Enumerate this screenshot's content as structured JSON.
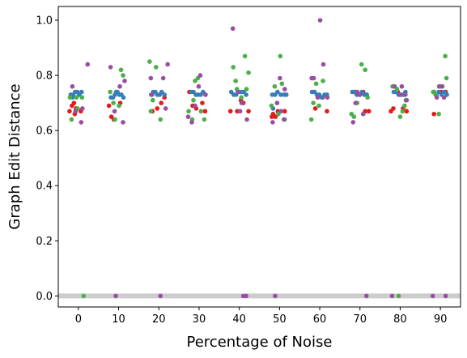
{
  "chart_data": {
    "type": "scatter",
    "title": "",
    "xlabel": "Percentage of Noise",
    "ylabel": "Graph Edit Distance",
    "xlim": [
      -5,
      95
    ],
    "ylim": [
      -0.04,
      1.05
    ],
    "x_ticks": [
      0,
      10,
      20,
      30,
      40,
      50,
      60,
      70,
      80,
      90
    ],
    "x_tick_labels": [
      "0",
      "10",
      "20",
      "30",
      "40",
      "50",
      "60",
      "70",
      "80",
      "90"
    ],
    "y_ticks": [
      0.0,
      0.2,
      0.4,
      0.6,
      0.8,
      1.0
    ],
    "y_tick_labels": [
      "0.0",
      "0.2",
      "0.4",
      "0.6",
      "0.8",
      "1.0"
    ],
    "baseline": {
      "y": 0.0,
      "color": "#cccccc"
    },
    "grid": false,
    "legend": "none",
    "series": [
      {
        "color": "#e41a1c",
        "points": [
          [
            -2.2,
            0.67
          ],
          [
            -1.6,
            0.69
          ],
          [
            -1.1,
            0.7
          ],
          [
            -0.6,
            0.68
          ],
          [
            0.6,
            0.67
          ],
          [
            -0.9,
            0.66
          ],
          [
            7.6,
            0.69
          ],
          [
            8.2,
            0.65
          ],
          [
            8.8,
            0.64
          ],
          [
            10.4,
            0.7
          ],
          [
            18.4,
            0.67
          ],
          [
            19.6,
            0.68
          ],
          [
            20.6,
            0.7
          ],
          [
            21.4,
            0.72
          ],
          [
            27.6,
            0.74
          ],
          [
            28.4,
            0.69
          ],
          [
            29.3,
            0.68
          ],
          [
            30.8,
            0.7
          ],
          [
            31.5,
            0.67
          ],
          [
            37.8,
            0.67
          ],
          [
            39.5,
            0.67
          ],
          [
            40.4,
            0.71
          ],
          [
            41.0,
            0.7
          ],
          [
            42.3,
            0.67
          ],
          [
            48.1,
            0.65
          ],
          [
            48.4,
            0.66
          ],
          [
            49.6,
            0.67
          ],
          [
            51.3,
            0.67
          ],
          [
            49.0,
            0.65
          ],
          [
            58.1,
            0.74
          ],
          [
            58.9,
            0.68
          ],
          [
            60.7,
            0.72
          ],
          [
            61.8,
            0.67
          ],
          [
            68.9,
            0.74
          ],
          [
            70.8,
            0.74
          ],
          [
            71.3,
            0.67
          ],
          [
            72.2,
            0.67
          ],
          [
            77.7,
            0.67
          ],
          [
            78.3,
            0.68
          ],
          [
            79.4,
            0.74
          ],
          [
            80.7,
            0.68
          ],
          [
            81.6,
            0.67
          ],
          [
            88.3,
            0.74
          ],
          [
            88.4,
            0.66
          ],
          [
            90.2,
            0.74
          ],
          [
            91.3,
            0.74
          ]
        ]
      },
      {
        "color": "#377eb8",
        "points": [
          [
            -1.9,
            0.73
          ],
          [
            -1.3,
            0.73
          ],
          [
            -0.8,
            0.74
          ],
          [
            -0.3,
            0.74
          ],
          [
            0.2,
            0.73
          ],
          [
            0.8,
            0.74
          ],
          [
            -1.5,
            0.72
          ],
          [
            8.1,
            0.72
          ],
          [
            8.6,
            0.72
          ],
          [
            9.1,
            0.73
          ],
          [
            9.7,
            0.74
          ],
          [
            10.2,
            0.73
          ],
          [
            10.7,
            0.73
          ],
          [
            11.2,
            0.72
          ],
          [
            9.4,
            0.74
          ],
          [
            18.1,
            0.73
          ],
          [
            18.6,
            0.74
          ],
          [
            19.1,
            0.74
          ],
          [
            19.6,
            0.73
          ],
          [
            20.2,
            0.73
          ],
          [
            20.7,
            0.74
          ],
          [
            21.4,
            0.73
          ],
          [
            28.1,
            0.74
          ],
          [
            28.6,
            0.74
          ],
          [
            29.2,
            0.73
          ],
          [
            29.8,
            0.73
          ],
          [
            30.4,
            0.73
          ],
          [
            31.0,
            0.74
          ],
          [
            31.6,
            0.73
          ],
          [
            38.0,
            0.74
          ],
          [
            38.6,
            0.73
          ],
          [
            39.2,
            0.73
          ],
          [
            39.8,
            0.74
          ],
          [
            40.5,
            0.74
          ],
          [
            41.1,
            0.74
          ],
          [
            41.7,
            0.73
          ],
          [
            48.2,
            0.73
          ],
          [
            48.9,
            0.73
          ],
          [
            49.5,
            0.74
          ],
          [
            50.3,
            0.73
          ],
          [
            51.1,
            0.73
          ],
          [
            51.7,
            0.73
          ],
          [
            48.4,
            0.68
          ],
          [
            58.1,
            0.74
          ],
          [
            58.7,
            0.74
          ],
          [
            59.3,
            0.73
          ],
          [
            59.9,
            0.73
          ],
          [
            60.5,
            0.72
          ],
          [
            61.2,
            0.73
          ],
          [
            61.8,
            0.73
          ],
          [
            68.1,
            0.74
          ],
          [
            68.6,
            0.74
          ],
          [
            69.2,
            0.73
          ],
          [
            69.8,
            0.73
          ],
          [
            70.5,
            0.74
          ],
          [
            71.1,
            0.73
          ],
          [
            71.7,
            0.73
          ],
          [
            78.4,
            0.74
          ],
          [
            79.0,
            0.74
          ],
          [
            79.6,
            0.73
          ],
          [
            80.2,
            0.73
          ],
          [
            80.8,
            0.73
          ],
          [
            81.3,
            0.74
          ],
          [
            88.4,
            0.74
          ],
          [
            89.0,
            0.73
          ],
          [
            89.6,
            0.74
          ],
          [
            90.3,
            0.73
          ],
          [
            90.9,
            0.74
          ],
          [
            91.6,
            0.73
          ]
        ]
      },
      {
        "color": "#4daf4a",
        "points": [
          [
            -2.1,
            0.72
          ],
          [
            -1.7,
            0.64
          ],
          [
            -0.5,
            0.72
          ],
          [
            -0.2,
            0.68
          ],
          [
            0.9,
            0.72
          ],
          [
            1.3,
            0.0
          ],
          [
            7.9,
            0.74
          ],
          [
            8.7,
            0.7
          ],
          [
            9.1,
            0.64
          ],
          [
            10.1,
            0.69
          ],
          [
            10.6,
            0.82
          ],
          [
            11.1,
            0.8
          ],
          [
            17.7,
            0.85
          ],
          [
            18.0,
            0.67
          ],
          [
            18.5,
            0.71
          ],
          [
            19.3,
            0.83
          ],
          [
            20.4,
            0.64
          ],
          [
            27.4,
            0.67
          ],
          [
            28.3,
            0.64
          ],
          [
            28.6,
            0.71
          ],
          [
            29.7,
            0.79
          ],
          [
            30.5,
            0.67
          ],
          [
            31.3,
            0.64
          ],
          [
            29.0,
            0.78
          ],
          [
            38.5,
            0.83
          ],
          [
            39.1,
            0.78
          ],
          [
            39.4,
            0.75
          ],
          [
            41.4,
            0.87
          ],
          [
            41.8,
            0.75
          ],
          [
            42.3,
            0.81
          ],
          [
            40.5,
            0.72
          ],
          [
            48.0,
            0.69
          ],
          [
            48.8,
            0.76
          ],
          [
            49.7,
            0.66
          ],
          [
            50.2,
            0.87
          ],
          [
            51.3,
            0.64
          ],
          [
            50.6,
            0.77
          ],
          [
            57.9,
            0.64
          ],
          [
            58.4,
            0.7
          ],
          [
            59.1,
            0.77
          ],
          [
            59.8,
            0.69
          ],
          [
            60.8,
            0.78
          ],
          [
            67.9,
            0.66
          ],
          [
            68.5,
            0.65
          ],
          [
            69.3,
            0.7
          ],
          [
            70.4,
            0.84
          ],
          [
            71.3,
            0.82
          ],
          [
            71.9,
            0.72
          ],
          [
            78.1,
            0.76
          ],
          [
            79.2,
            0.75
          ],
          [
            80.0,
            0.65
          ],
          [
            80.6,
            0.67
          ],
          [
            81.1,
            0.69
          ],
          [
            81.4,
            0.71
          ],
          [
            79.6,
            0.0
          ],
          [
            88.2,
            0.74
          ],
          [
            88.8,
            0.73
          ],
          [
            89.6,
            0.66
          ],
          [
            90.5,
            0.76
          ],
          [
            91.2,
            0.87
          ],
          [
            91.5,
            0.79
          ]
        ]
      },
      {
        "color": "#984ea3",
        "points": [
          [
            -1.5,
            0.76
          ],
          [
            -0.7,
            0.67
          ],
          [
            0.7,
            0.63
          ],
          [
            1.0,
            0.68
          ],
          [
            2.3,
            0.84
          ],
          [
            8.0,
            0.83
          ],
          [
            9.0,
            0.67
          ],
          [
            9.3,
            0.0
          ],
          [
            10.3,
            0.76
          ],
          [
            11.1,
            0.63
          ],
          [
            11.5,
            0.78
          ],
          [
            18.0,
            0.79
          ],
          [
            18.3,
            0.73
          ],
          [
            20.4,
            0.0
          ],
          [
            21.1,
            0.79
          ],
          [
            22.2,
            0.84
          ],
          [
            21.7,
            0.68
          ],
          [
            27.3,
            0.65
          ],
          [
            28.2,
            0.63
          ],
          [
            29.0,
            0.69
          ],
          [
            29.9,
            0.76
          ],
          [
            30.3,
            0.8
          ],
          [
            31.6,
            0.73
          ],
          [
            38.4,
            0.97
          ],
          [
            39.7,
            0.74
          ],
          [
            40.2,
            0.67
          ],
          [
            41.0,
            0.0
          ],
          [
            41.7,
            0.0
          ],
          [
            41.9,
            0.64
          ],
          [
            40.6,
            0.7
          ],
          [
            48.3,
            0.63
          ],
          [
            48.9,
            0.0
          ],
          [
            49.4,
            0.7
          ],
          [
            50.1,
            0.79
          ],
          [
            51.1,
            0.64
          ],
          [
            51.3,
            0.75
          ],
          [
            50.4,
            0.67
          ],
          [
            58.0,
            0.79
          ],
          [
            58.5,
            0.79
          ],
          [
            60.1,
            1.0
          ],
          [
            60.9,
            0.84
          ],
          [
            61.9,
            0.72
          ],
          [
            59.5,
            0.72
          ],
          [
            68.3,
            0.63
          ],
          [
            68.9,
            0.7
          ],
          [
            69.3,
            0.74
          ],
          [
            70.0,
            0.73
          ],
          [
            70.8,
            0.66
          ],
          [
            71.6,
            0.0
          ],
          [
            78.0,
            0.0
          ],
          [
            78.6,
            0.76
          ],
          [
            80.4,
            0.76
          ],
          [
            81.3,
            0.73
          ],
          [
            81.6,
            0.71
          ],
          [
            80.0,
            0.73
          ],
          [
            88.1,
            0.0
          ],
          [
            89.1,
            0.72
          ],
          [
            89.7,
            0.76
          ],
          [
            90.3,
            0.76
          ],
          [
            91.3,
            0.0
          ],
          [
            90.9,
            0.72
          ]
        ]
      }
    ]
  }
}
